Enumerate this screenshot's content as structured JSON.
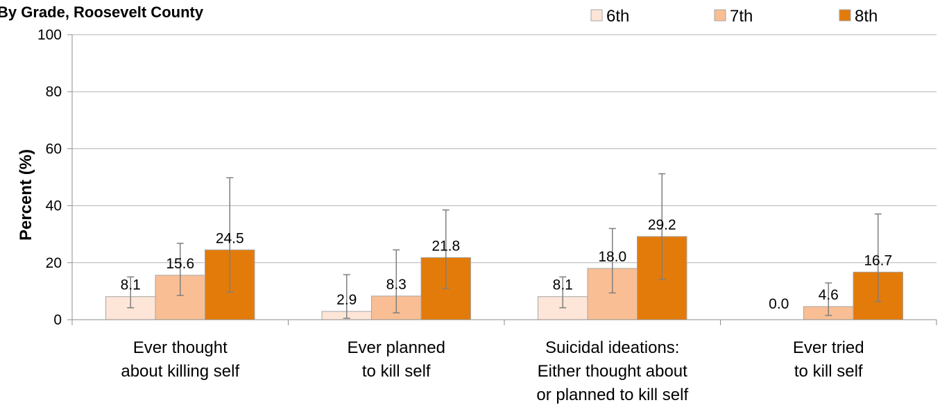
{
  "chart_data": {
    "type": "bar",
    "title": "By Grade, Roosevelt County",
    "ylabel": "Percent (%)",
    "xlabel": "",
    "ylim": [
      0,
      100
    ],
    "yticks": [
      "0",
      "20",
      "40",
      "60",
      "80",
      "100"
    ],
    "grid": true,
    "legend_position": "top-right",
    "categories": [
      [
        "Ever thought",
        "about killing self"
      ],
      [
        "Ever planned",
        "to kill self"
      ],
      [
        "Suicidal ideations:",
        "Either thought about",
        "or planned to kill self"
      ],
      [
        "Ever tried",
        "to kill self"
      ]
    ],
    "series": [
      {
        "name": "6th",
        "color": "#FDE5D7",
        "values": [
          8.1,
          2.9,
          8.1,
          0.0
        ],
        "labels": [
          "8.1",
          "2.9",
          "8.1",
          "0.0"
        ],
        "ci_low": [
          4.2,
          0.5,
          4.2,
          0.0
        ],
        "ci_high": [
          15.0,
          15.8,
          15.0,
          0.0
        ]
      },
      {
        "name": "7th",
        "color": "#F9BE94",
        "values": [
          15.6,
          8.3,
          18.0,
          4.6
        ],
        "labels": [
          "15.6",
          "8.3",
          "18.0",
          "4.6"
        ],
        "ci_low": [
          8.5,
          2.4,
          9.4,
          1.5
        ],
        "ci_high": [
          26.8,
          24.5,
          32.0,
          12.9
        ]
      },
      {
        "name": "8th",
        "color": "#E37B0B",
        "values": [
          24.5,
          21.8,
          29.2,
          16.7
        ],
        "labels": [
          "24.5",
          "21.8",
          "29.2",
          "16.7"
        ],
        "ci_low": [
          9.7,
          11.0,
          14.1,
          6.4
        ],
        "ci_high": [
          49.8,
          38.5,
          51.2,
          37.1
        ]
      }
    ]
  }
}
